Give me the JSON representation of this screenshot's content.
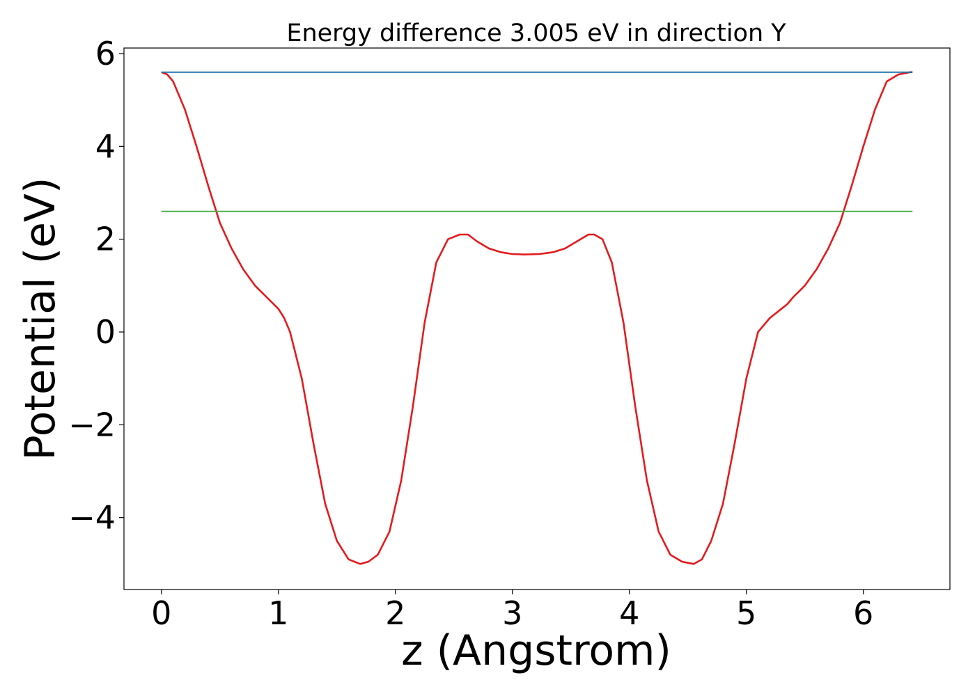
{
  "chart_data": {
    "type": "line",
    "title": "Energy difference 3.005 eV in direction Y",
    "xlabel": "z (Angstrom)",
    "ylabel": "Potential (eV)",
    "xlim": [
      -0.32,
      6.74
    ],
    "ylim": [
      -5.55,
      6.12
    ],
    "x_ticks": [
      0,
      1,
      2,
      3,
      4,
      5,
      6
    ],
    "x_tick_labels": [
      "0",
      "1",
      "2",
      "3",
      "4",
      "5",
      "6"
    ],
    "y_ticks": [
      -4,
      -2,
      0,
      2,
      4,
      6
    ],
    "y_tick_labels": [
      "−4",
      "−2",
      "0",
      "2",
      "4",
      "6"
    ],
    "grid": false,
    "legend": "none",
    "series": [
      {
        "color": "#e41a1c",
        "x": [
          0,
          0.05,
          0.1,
          0.2,
          0.3,
          0.4,
          0.5,
          0.6,
          0.7,
          0.8,
          0.9,
          1.0,
          1.05,
          1.1,
          1.2,
          1.3,
          1.4,
          1.5,
          1.6,
          1.7,
          1.77,
          1.85,
          1.95,
          2.05,
          2.15,
          2.25,
          2.35,
          2.45,
          2.55,
          2.62,
          2.7,
          2.8,
          2.9,
          3.0,
          3.1,
          3.23,
          3.35,
          3.45,
          3.55,
          3.65,
          3.7,
          3.77,
          3.85,
          3.95,
          4.05,
          4.15,
          4.25,
          4.35,
          4.45,
          4.55,
          4.62,
          4.7,
          4.8,
          4.9,
          5.0,
          5.1,
          5.2,
          5.3,
          5.35,
          5.4,
          5.5,
          5.6,
          5.7,
          5.8,
          5.9,
          6.0,
          6.1,
          6.2,
          6.3,
          6.4,
          6.42
        ],
        "y": [
          5.6,
          5.55,
          5.4,
          4.8,
          4.0,
          3.15,
          2.35,
          1.8,
          1.35,
          1.0,
          0.75,
          0.5,
          0.3,
          0.0,
          -1.0,
          -2.4,
          -3.7,
          -4.5,
          -4.9,
          -5.0,
          -4.95,
          -4.8,
          -4.3,
          -3.2,
          -1.6,
          0.2,
          1.5,
          2.0,
          2.1,
          2.1,
          1.95,
          1.8,
          1.72,
          1.68,
          1.67,
          1.68,
          1.72,
          1.8,
          1.95,
          2.1,
          2.1,
          2.0,
          1.5,
          0.2,
          -1.6,
          -3.2,
          -4.3,
          -4.8,
          -4.95,
          -5.0,
          -4.9,
          -4.5,
          -3.7,
          -2.4,
          -1.0,
          0.0,
          0.3,
          0.5,
          0.6,
          0.75,
          1.0,
          1.35,
          1.8,
          2.35,
          3.15,
          4.0,
          4.8,
          5.4,
          5.55,
          5.6,
          5.6
        ]
      },
      {
        "color": "#1f77b4",
        "x": [
          0,
          6.42
        ],
        "y": [
          5.6,
          5.6
        ]
      },
      {
        "color": "#4daf4a",
        "x": [
          0,
          6.42
        ],
        "y": [
          2.6,
          2.6
        ]
      }
    ]
  }
}
